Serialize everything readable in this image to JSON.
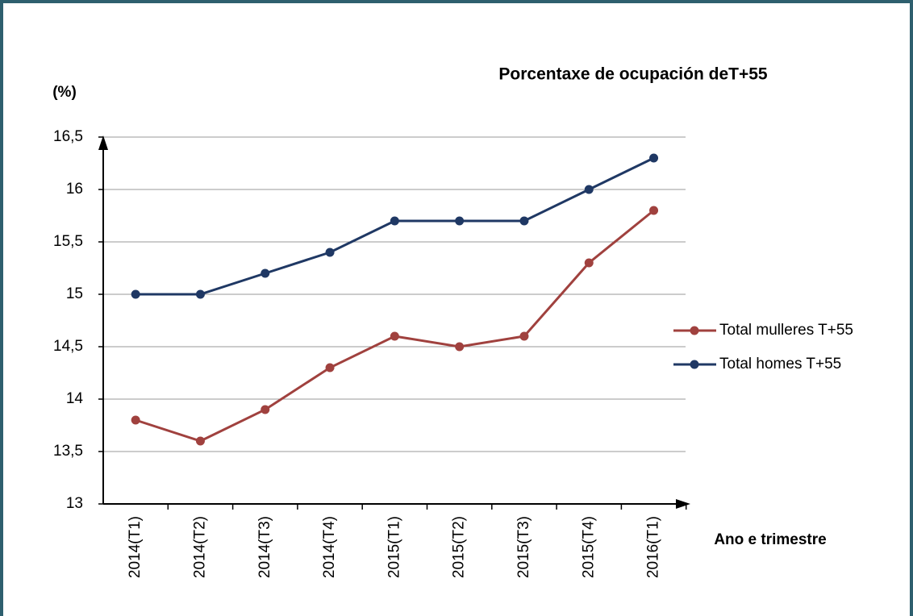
{
  "chart_data": {
    "type": "line",
    "title": "Porcentaxe de ocupación deT+55",
    "y_label": "(%)",
    "x_label": "Ano e trimestre",
    "categories": [
      "2014(T1)",
      "2014(T2)",
      "2014(T3)",
      "2014(T4)",
      "2015(T1)",
      "2015(T2)",
      "2015(T3)",
      "2015(T4)",
      "2016(T1)"
    ],
    "series": [
      {
        "name": "Total mulleres T+55",
        "color": "#a0413e",
        "values": [
          13.8,
          13.6,
          13.9,
          14.3,
          14.6,
          14.5,
          14.6,
          15.3,
          15.8
        ]
      },
      {
        "name": "Total homes T+55",
        "color": "#1f3864",
        "values": [
          15,
          15,
          15.2,
          15.4,
          15.7,
          15.7,
          15.7,
          16,
          16.3
        ]
      }
    ],
    "ylim": [
      13,
      16.5
    ],
    "yticks": [
      13,
      {
        "value": 13.5,
        "label": "13,5"
      },
      14,
      {
        "value": 14.5,
        "label": "14,5"
      },
      15,
      {
        "value": 15.5,
        "label": "15,5"
      },
      16,
      {
        "value": 16.5,
        "label": "16,5"
      }
    ],
    "grid": true,
    "legend": "right"
  }
}
